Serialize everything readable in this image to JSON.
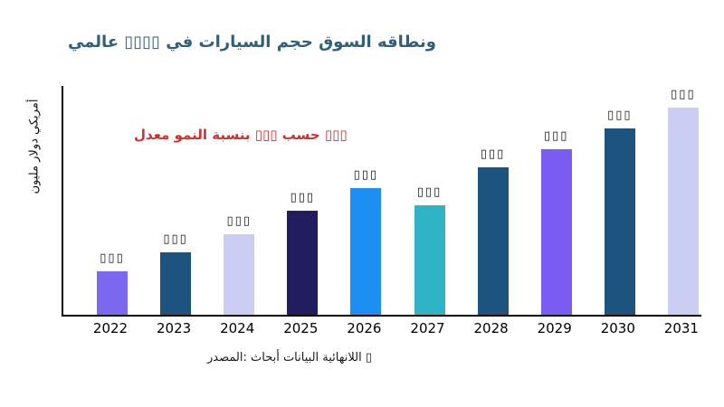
{
  "header": {
    "title": "ونطاقه السوق حجم السيارات في ▯▯▯▯ عالمي",
    "color": "#2d5f7e"
  },
  "annotation": {
    "text": "▯▯▯ حسب ▯▯▯ بنسبة النمو معدل",
    "color": "#d03030"
  },
  "source": {
    "text": "▯ اللانهائية البيانات أبحاث :المصدر"
  },
  "chart_data": {
    "type": "bar",
    "title_visual_reading": "عالمي ▯▯▯▯ في السيارات حجم السوق ونطاقه",
    "categories": [
      "2022",
      "2023",
      "2024",
      "2025",
      "2026",
      "2027",
      "2028",
      "2029",
      "2030",
      "2031"
    ],
    "values": [
      21,
      30,
      39,
      50,
      61,
      53,
      71,
      80,
      90,
      100
    ],
    "values_note": "Relative bar heights (tallest = 100); numeric value labels are unreadable tofu glyphs in the source image",
    "bar_value_labels": [
      "▯▯▯",
      "▯▯▯",
      "▯▯▯",
      "▯▯▯",
      "▯▯▯",
      "▯▯▯",
      "▯▯▯",
      "▯▯▯",
      "▯▯▯",
      "▯▯▯"
    ],
    "colors": [
      "#7b68ee",
      "#1d537f",
      "#cbcdf2",
      "#211d5e",
      "#1d8ff2",
      "#2eb4c4",
      "#1d537f",
      "#7a5cf2",
      "#1d537f",
      "#cbcdf2"
    ],
    "xlabel": "",
    "ylabel": "أمريكي دولار مليون",
    "ylim": [
      0,
      100
    ],
    "grid": false,
    "legend": false
  }
}
